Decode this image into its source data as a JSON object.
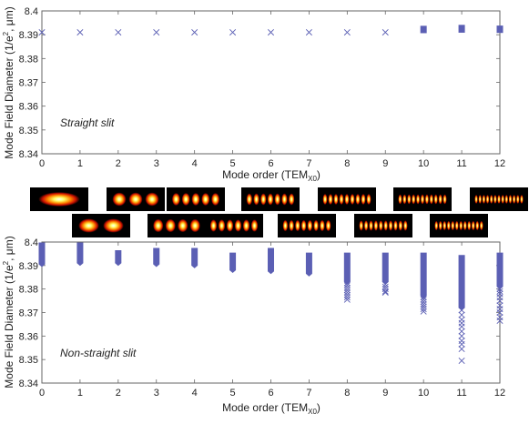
{
  "figure": {
    "ylabel": "Mode Field Diameter (1/e",
    "ylabel_sup": "2",
    "ylabel_tail": ", μm)",
    "xlabel": "Mode order (TEM",
    "xlabel_sub": "X0",
    "xlabel_tail": ")"
  },
  "colors": {
    "marker": "#5b5fb4",
    "axis": "#666666",
    "mode_bg": "#000000"
  },
  "chart_data": [
    {
      "type": "scatter",
      "panel": "top",
      "annotation": "Straight slit",
      "xlabel": "Mode order (TEMX0)",
      "ylabel": "Mode Field Diameter (1/e2, μm)",
      "xlim": [
        0,
        12
      ],
      "ylim": [
        8.34,
        8.4
      ],
      "xticks": [
        "0",
        "1",
        "2",
        "3",
        "4",
        "5",
        "6",
        "7",
        "8",
        "9",
        "10",
        "11",
        "12"
      ],
      "yticks": [
        "8.34",
        "8.35",
        "8.36",
        "8.37",
        "8.38",
        "8.39",
        "8.4"
      ],
      "grid": false,
      "series": [
        {
          "x": [
            0,
            1,
            2,
            3,
            4,
            5,
            6,
            7,
            8,
            9
          ],
          "y": [
            8.391,
            8.391,
            8.391,
            8.391,
            8.391,
            8.391,
            8.391,
            8.391,
            8.391,
            8.391
          ],
          "spread": [
            0,
            0,
            0,
            0,
            0,
            0,
            0,
            0,
            0,
            0
          ]
        },
        {
          "x": [
            10,
            11,
            12
          ],
          "y": [
            8.3922,
            8.3925,
            8.3923
          ],
          "spread": [
            0.0008,
            0.001,
            0.0008
          ]
        }
      ]
    },
    {
      "type": "scatter",
      "panel": "bottom",
      "annotation": "Non-straight slit",
      "xlabel": "Mode order (TEMX0)",
      "ylabel": "Mode Field Diameter (1/e2, μm)",
      "xlim": [
        0,
        12
      ],
      "ylim": [
        8.34,
        8.4
      ],
      "xticks": [
        "0",
        "1",
        "2",
        "3",
        "4",
        "5",
        "6",
        "7",
        "8",
        "9",
        "10",
        "11",
        "12"
      ],
      "yticks": [
        "8.34",
        "8.35",
        "8.36",
        "8.37",
        "8.38",
        "8.39",
        "8.4"
      ],
      "grid": false,
      "columns": [
        {
          "x": 0,
          "dense_top": 8.3998,
          "dense_bottom": 8.3905,
          "outliers": []
        },
        {
          "x": 1,
          "dense_top": 8.3998,
          "dense_bottom": 8.391,
          "outliers": []
        },
        {
          "x": 2,
          "dense_top": 8.3965,
          "dense_bottom": 8.391,
          "outliers": []
        },
        {
          "x": 3,
          "dense_top": 8.3975,
          "dense_bottom": 8.3905,
          "outliers": []
        },
        {
          "x": 4,
          "dense_top": 8.3975,
          "dense_bottom": 8.39,
          "outliers": []
        },
        {
          "x": 5,
          "dense_top": 8.3955,
          "dense_bottom": 8.388,
          "outliers": []
        },
        {
          "x": 6,
          "dense_top": 8.3975,
          "dense_bottom": 8.3875,
          "outliers": []
        },
        {
          "x": 7,
          "dense_top": 8.3955,
          "dense_bottom": 8.3865,
          "outliers": []
        },
        {
          "x": 8,
          "dense_top": 8.3955,
          "dense_bottom": 8.383,
          "outliers": [
            8.3825,
            8.3815,
            8.3805,
            8.3795,
            8.3785,
            8.3775,
            8.3765,
            8.3755
          ]
        },
        {
          "x": 9,
          "dense_top": 8.3955,
          "dense_bottom": 8.383,
          "outliers": [
            8.382,
            8.381,
            8.38,
            8.379,
            8.3785
          ]
        },
        {
          "x": 10,
          "dense_top": 8.3955,
          "dense_bottom": 8.377,
          "outliers": [
            8.3765,
            8.3755,
            8.3745,
            8.3735,
            8.3725,
            8.3715,
            8.3705
          ]
        },
        {
          "x": 11,
          "dense_top": 8.3945,
          "dense_bottom": 8.372,
          "outliers": [
            8.371,
            8.369,
            8.367,
            8.3655,
            8.364,
            8.362,
            8.36,
            8.358,
            8.3565,
            8.3545,
            8.3495
          ]
        },
        {
          "x": 12,
          "dense_top": 8.3955,
          "dense_bottom": 8.381,
          "outliers": [
            8.38,
            8.379,
            8.378,
            8.3765,
            8.375,
            8.373,
            8.3715,
            8.37,
            8.368,
            8.3665
          ]
        }
      ]
    }
  ],
  "mode_images": [
    {
      "order": 0,
      "row": 1
    },
    {
      "order": 1,
      "row": 2
    },
    {
      "order": 2,
      "row": 1
    },
    {
      "order": 3,
      "row": 2
    },
    {
      "order": 4,
      "row": 1
    },
    {
      "order": 5,
      "row": 2
    },
    {
      "order": 6,
      "row": 1
    },
    {
      "order": 7,
      "row": 2
    },
    {
      "order": 8,
      "row": 1
    },
    {
      "order": 9,
      "row": 2
    },
    {
      "order": 10,
      "row": 1
    },
    {
      "order": 11,
      "row": 2
    },
    {
      "order": 12,
      "row": 1
    }
  ]
}
